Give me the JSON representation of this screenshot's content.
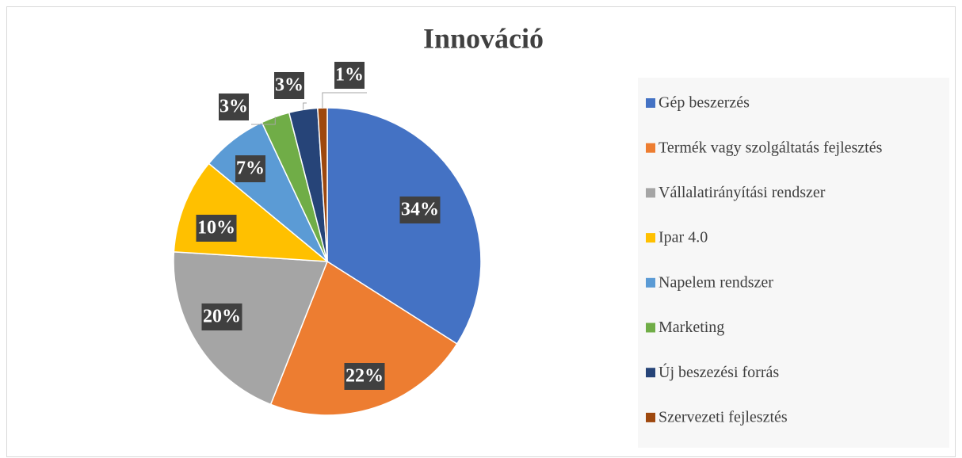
{
  "chart_data": {
    "type": "pie",
    "title": "Innováció",
    "categories": [
      "Gép beszerzés",
      "Termék vagy szolgáltatás fejlesztés",
      "Vállalatirányítási rendszer",
      "Ipar 4.0",
      "Napelem rendszer",
      "Marketing",
      "Új beszezési forrás",
      "Szervezeti fejlesztés"
    ],
    "values": [
      34,
      22,
      20,
      10,
      7,
      3,
      3,
      1
    ],
    "value_labels": [
      "34%",
      "22%",
      "20%",
      "10%",
      "7%",
      "3%",
      "3%",
      "1%"
    ],
    "colors": [
      "#4472c4",
      "#ed7d31",
      "#a5a5a5",
      "#ffc000",
      "#5b9bd5",
      "#70ad47",
      "#264478",
      "#9e480e"
    ],
    "legend": "right"
  }
}
